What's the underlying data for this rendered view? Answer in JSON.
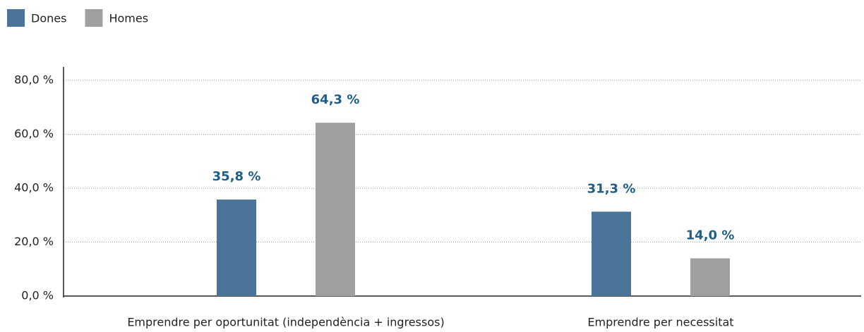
{
  "chart_data": {
    "type": "bar",
    "categories": [
      "Emprendre per oportunitat (independència + ingressos)",
      "Emprendre per necessitat"
    ],
    "series": [
      {
        "name": "Dones",
        "color": "#4a7499",
        "values": [
          35.8,
          31.3
        ],
        "value_labels": [
          "35,8 %",
          "31,3 %"
        ]
      },
      {
        "name": "Homes",
        "color": "#a0a0a0",
        "values": [
          64.3,
          14.0
        ],
        "value_labels": [
          "64,3 %",
          "14,0 %"
        ]
      }
    ],
    "ylim": [
      0,
      85
    ],
    "yticks": [
      {
        "value": 0,
        "label": "0,0 %"
      },
      {
        "value": 20,
        "label": "20,0 %"
      },
      {
        "value": 40,
        "label": "40,0 %"
      },
      {
        "value": 60,
        "label": "60,0 %"
      },
      {
        "value": 80,
        "label": "80,0 %"
      }
    ],
    "grid": true,
    "legend": "top-left"
  }
}
